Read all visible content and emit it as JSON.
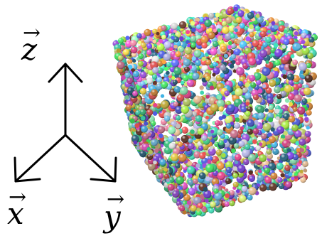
{
  "axes": {
    "z": {
      "letter": "z",
      "vector_mark": "→"
    },
    "x": {
      "letter": "x",
      "vector_mark": "→"
    },
    "y": {
      "letter": "y",
      "vector_mark": "→"
    },
    "line_color": "#000000"
  },
  "particle_cube": {
    "background": "#ffffff",
    "palette": [
      "#ff5a5a",
      "#ff9f3f",
      "#ffe14a",
      "#b6ff4a",
      "#4aff6b",
      "#4affd2",
      "#4ac8ff",
      "#5a6bff",
      "#b25aff",
      "#ff5ad8",
      "#ff8fb0",
      "#9affc4",
      "#c9c9ff",
      "#ffd0a0",
      "#7ad0ff",
      "#e6ff7a",
      "#ff4a9a",
      "#3fd98c",
      "#8a4aff",
      "#f0f0f0",
      "#6b3a2a",
      "#2a6b8a"
    ]
  }
}
